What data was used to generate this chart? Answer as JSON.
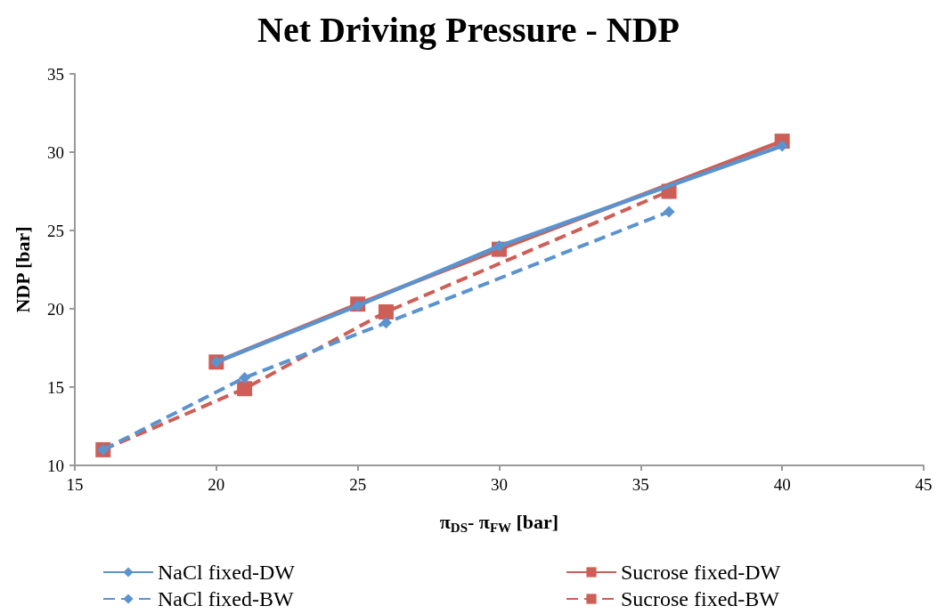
{
  "chart_data": {
    "type": "line",
    "title": "Net Driving Pressure - NDP",
    "xlabel": "π$_{DS}$- π$_{FW}$ [bar]",
    "ylabel": "NDP [bar]",
    "xlim": [
      15,
      45
    ],
    "xticks": [
      15,
      20,
      25,
      30,
      35,
      40,
      45
    ],
    "ylim": [
      10,
      35
    ],
    "yticks": [
      10,
      15,
      20,
      25,
      30,
      35
    ],
    "grid": false,
    "legend": "bottom",
    "series": [
      {
        "name": "NaCl fixed-DW",
        "color": "#5b93cf",
        "marker": "diamond",
        "line_style": "solid",
        "x": [
          20,
          25,
          30,
          40
        ],
        "values": [
          16.6,
          20.2,
          24.0,
          30.4
        ]
      },
      {
        "name": "Sucrose fixed-DW",
        "color": "#cd5f57",
        "marker": "square",
        "line_style": "solid",
        "x": [
          20,
          25,
          30,
          40
        ],
        "values": [
          16.6,
          20.3,
          23.8,
          30.7
        ]
      },
      {
        "name": "NaCl fixed-BW",
        "color": "#5b93cf",
        "marker": "diamond",
        "line_style": "dashed",
        "x": [
          16,
          21,
          26,
          36
        ],
        "values": [
          11.0,
          15.6,
          19.1,
          26.2
        ]
      },
      {
        "name": "Sucrose fixed-BW",
        "color": "#cd5f57",
        "marker": "square",
        "line_style": "dashed",
        "x": [
          16,
          21,
          26,
          36
        ],
        "values": [
          11.0,
          14.9,
          19.8,
          27.5
        ]
      }
    ]
  }
}
